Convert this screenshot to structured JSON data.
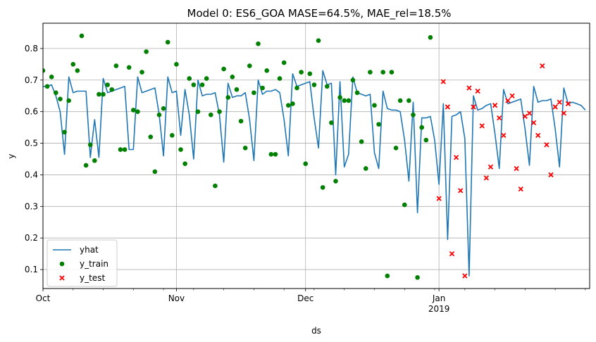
{
  "chart_data": {
    "type": "line",
    "title": "Model 0: ES6_GOA MASE=64.5%, MAE_rel=18.5%",
    "xlabel": "ds",
    "ylabel": "y",
    "x_range": [
      "2018-10-01",
      "2019-02-05"
    ],
    "ylim": [
      0.04,
      0.88
    ],
    "grid": true,
    "legend_position": "lower-left",
    "x_ticks": [
      {
        "date": "2018-10-01",
        "label": "Oct",
        "sublabel": ""
      },
      {
        "date": "2018-11-01",
        "label": "Nov",
        "sublabel": ""
      },
      {
        "date": "2018-12-01",
        "label": "Dec",
        "sublabel": ""
      },
      {
        "date": "2019-01-01",
        "label": "Jan",
        "sublabel": "2019"
      }
    ],
    "y_ticks": [
      0.1,
      0.2,
      0.3,
      0.4,
      0.5,
      0.6,
      0.7,
      0.8
    ],
    "y_tick_labels": [
      "0.1",
      "0.2",
      "0.3",
      "0.4",
      "0.5",
      "0.6",
      "0.7",
      "0.8"
    ],
    "colors": {
      "yhat": "#1f77b4",
      "y_train": "#008000",
      "y_test": "#ff0000",
      "grid": "#b0b0b0"
    },
    "legend": [
      "yhat",
      "y_train",
      "y_test"
    ],
    "series": [
      {
        "name": "yhat",
        "kind": "line",
        "values": [
          [
            "2018-09-30",
            0.73
          ],
          [
            "2018-10-01",
            0.68
          ],
          [
            "2018-10-02",
            0.68
          ],
          [
            "2018-10-03",
            0.685
          ],
          [
            "2018-10-04",
            0.65
          ],
          [
            "2018-10-05",
            0.6
          ],
          [
            "2018-10-06",
            0.465
          ],
          [
            "2018-10-07",
            0.71
          ],
          [
            "2018-10-08",
            0.66
          ],
          [
            "2018-10-09",
            0.665
          ],
          [
            "2018-10-10",
            0.665
          ],
          [
            "2018-10-11",
            0.665
          ],
          [
            "2018-10-12",
            0.455
          ],
          [
            "2018-10-13",
            0.575
          ],
          [
            "2018-10-14",
            0.455
          ],
          [
            "2018-10-15",
            0.705
          ],
          [
            "2018-10-16",
            0.66
          ],
          [
            "2018-10-17",
            0.665
          ],
          [
            "2018-10-18",
            0.67
          ],
          [
            "2018-10-19",
            0.675
          ],
          [
            "2018-10-20",
            0.68
          ],
          [
            "2018-10-21",
            0.48
          ],
          [
            "2018-10-22",
            0.48
          ],
          [
            "2018-10-23",
            0.71
          ],
          [
            "2018-10-24",
            0.66
          ],
          [
            "2018-10-25",
            0.665
          ],
          [
            "2018-10-26",
            0.67
          ],
          [
            "2018-10-27",
            0.675
          ],
          [
            "2018-10-28",
            0.59
          ],
          [
            "2018-10-29",
            0.46
          ],
          [
            "2018-10-30",
            0.71
          ],
          [
            "2018-10-31",
            0.66
          ],
          [
            "2018-11-01",
            0.665
          ],
          [
            "2018-11-02",
            0.525
          ],
          [
            "2018-11-03",
            0.67
          ],
          [
            "2018-11-04",
            0.59
          ],
          [
            "2018-11-05",
            0.45
          ],
          [
            "2018-11-06",
            0.7
          ],
          [
            "2018-11-07",
            0.65
          ],
          [
            "2018-11-08",
            0.655
          ],
          [
            "2018-11-09",
            0.655
          ],
          [
            "2018-11-10",
            0.66
          ],
          [
            "2018-11-11",
            0.59
          ],
          [
            "2018-11-12",
            0.44
          ],
          [
            "2018-11-13",
            0.69
          ],
          [
            "2018-11-14",
            0.645
          ],
          [
            "2018-11-15",
            0.65
          ],
          [
            "2018-11-16",
            0.65
          ],
          [
            "2018-11-17",
            0.66
          ],
          [
            "2018-11-18",
            0.575
          ],
          [
            "2018-11-19",
            0.445
          ],
          [
            "2018-11-20",
            0.7
          ],
          [
            "2018-11-21",
            0.655
          ],
          [
            "2018-11-22",
            0.665
          ],
          [
            "2018-11-23",
            0.665
          ],
          [
            "2018-11-24",
            0.67
          ],
          [
            "2018-11-25",
            0.66
          ],
          [
            "2018-11-26",
            0.575
          ],
          [
            "2018-11-27",
            0.46
          ],
          [
            "2018-11-28",
            0.72
          ],
          [
            "2018-11-29",
            0.68
          ],
          [
            "2018-11-30",
            0.685
          ],
          [
            "2018-12-01",
            0.69
          ],
          [
            "2018-12-02",
            0.695
          ],
          [
            "2018-12-03",
            0.58
          ],
          [
            "2018-12-04",
            0.485
          ],
          [
            "2018-12-05",
            0.73
          ],
          [
            "2018-12-06",
            0.685
          ],
          [
            "2018-12-07",
            0.69
          ],
          [
            "2018-12-08",
            0.4
          ],
          [
            "2018-12-09",
            0.695
          ],
          [
            "2018-12-10",
            0.425
          ],
          [
            "2018-12-11",
            0.465
          ],
          [
            "2018-12-12",
            0.71
          ],
          [
            "2018-12-13",
            0.66
          ],
          [
            "2018-12-14",
            0.655
          ],
          [
            "2018-12-15",
            0.65
          ],
          [
            "2018-12-16",
            0.655
          ],
          [
            "2018-12-17",
            0.47
          ],
          [
            "2018-12-18",
            0.42
          ],
          [
            "2018-12-19",
            0.665
          ],
          [
            "2018-12-20",
            0.61
          ],
          [
            "2018-12-21",
            0.605
          ],
          [
            "2018-12-22",
            0.605
          ],
          [
            "2018-12-23",
            0.6
          ],
          [
            "2018-12-24",
            0.51
          ],
          [
            "2018-12-25",
            0.38
          ],
          [
            "2018-12-26",
            0.63
          ],
          [
            "2018-12-27",
            0.28
          ],
          [
            "2018-12-28",
            0.58
          ],
          [
            "2018-12-29",
            0.58
          ],
          [
            "2018-12-30",
            0.585
          ],
          [
            "2018-12-31",
            0.51
          ],
          [
            "2019-01-01",
            0.37
          ],
          [
            "2019-01-02",
            0.625
          ],
          [
            "2019-01-03",
            0.195
          ],
          [
            "2019-01-04",
            0.585
          ],
          [
            "2019-01-05",
            0.59
          ],
          [
            "2019-01-06",
            0.6
          ],
          [
            "2019-01-07",
            0.515
          ],
          [
            "2019-01-08",
            0.08
          ],
          [
            "2019-01-09",
            0.65
          ],
          [
            "2019-01-10",
            0.605
          ],
          [
            "2019-01-11",
            0.61
          ],
          [
            "2019-01-12",
            0.62
          ],
          [
            "2019-01-13",
            0.625
          ],
          [
            "2019-01-14",
            0.53
          ],
          [
            "2019-01-15",
            0.42
          ],
          [
            "2019-01-16",
            0.67
          ],
          [
            "2019-01-17",
            0.625
          ],
          [
            "2019-01-18",
            0.63
          ],
          [
            "2019-01-19",
            0.635
          ],
          [
            "2019-01-20",
            0.64
          ],
          [
            "2019-01-21",
            0.545
          ],
          [
            "2019-01-22",
            0.43
          ],
          [
            "2019-01-23",
            0.68
          ],
          [
            "2019-01-24",
            0.63
          ],
          [
            "2019-01-25",
            0.635
          ],
          [
            "2019-01-26",
            0.635
          ],
          [
            "2019-01-27",
            0.64
          ],
          [
            "2019-01-28",
            0.545
          ],
          [
            "2019-01-29",
            0.425
          ],
          [
            "2019-01-30",
            0.675
          ],
          [
            "2019-01-31",
            0.625
          ],
          [
            "2019-02-01",
            0.63
          ],
          [
            "2019-02-02",
            0.625
          ],
          [
            "2019-02-03",
            0.62
          ],
          [
            "2019-02-04",
            0.605
          ]
        ]
      },
      {
        "name": "y_train",
        "kind": "scatter",
        "values": [
          [
            "2018-09-30",
            0.73
          ],
          [
            "2018-10-01",
            0.73
          ],
          [
            "2018-10-02",
            0.68
          ],
          [
            "2018-10-03",
            0.71
          ],
          [
            "2018-10-04",
            0.66
          ],
          [
            "2018-10-05",
            0.64
          ],
          [
            "2018-10-06",
            0.535
          ],
          [
            "2018-10-07",
            0.635
          ],
          [
            "2018-10-08",
            0.75
          ],
          [
            "2018-10-09",
            0.73
          ],
          [
            "2018-10-10",
            0.84
          ],
          [
            "2018-10-11",
            0.43
          ],
          [
            "2018-10-12",
            0.495
          ],
          [
            "2018-10-13",
            0.445
          ],
          [
            "2018-10-14",
            0.655
          ],
          [
            "2018-10-15",
            0.655
          ],
          [
            "2018-10-16",
            0.685
          ],
          [
            "2018-10-17",
            0.67
          ],
          [
            "2018-10-18",
            0.745
          ],
          [
            "2018-10-19",
            0.48
          ],
          [
            "2018-10-20",
            0.48
          ],
          [
            "2018-10-21",
            0.74
          ],
          [
            "2018-10-22",
            0.605
          ],
          [
            "2018-10-23",
            0.6
          ],
          [
            "2018-10-24",
            0.725
          ],
          [
            "2018-10-25",
            0.79
          ],
          [
            "2018-10-26",
            0.52
          ],
          [
            "2018-10-27",
            0.41
          ],
          [
            "2018-10-28",
            0.59
          ],
          [
            "2018-10-29",
            0.61
          ],
          [
            "2018-10-30",
            0.82
          ],
          [
            "2018-10-31",
            0.525
          ],
          [
            "2018-11-01",
            0.75
          ],
          [
            "2018-11-02",
            0.48
          ],
          [
            "2018-11-03",
            0.435
          ],
          [
            "2018-11-04",
            0.705
          ],
          [
            "2018-11-05",
            0.685
          ],
          [
            "2018-11-06",
            0.6
          ],
          [
            "2018-11-07",
            0.685
          ],
          [
            "2018-11-08",
            0.705
          ],
          [
            "2018-11-09",
            0.59
          ],
          [
            "2018-11-10",
            0.365
          ],
          [
            "2018-11-11",
            0.6
          ],
          [
            "2018-11-12",
            0.735
          ],
          [
            "2018-11-13",
            0.645
          ],
          [
            "2018-11-14",
            0.71
          ],
          [
            "2018-11-15",
            0.67
          ],
          [
            "2018-11-16",
            0.57
          ],
          [
            "2018-11-17",
            0.485
          ],
          [
            "2018-11-18",
            0.745
          ],
          [
            "2018-11-19",
            0.66
          ],
          [
            "2018-11-20",
            0.815
          ],
          [
            "2018-11-21",
            0.675
          ],
          [
            "2018-11-22",
            0.73
          ],
          [
            "2018-11-23",
            0.465
          ],
          [
            "2018-11-24",
            0.465
          ],
          [
            "2018-11-25",
            0.705
          ],
          [
            "2018-11-26",
            0.755
          ],
          [
            "2018-11-27",
            0.62
          ],
          [
            "2018-11-28",
            0.625
          ],
          [
            "2018-11-29",
            0.675
          ],
          [
            "2018-11-30",
            0.725
          ],
          [
            "2018-12-01",
            0.435
          ],
          [
            "2018-12-02",
            0.72
          ],
          [
            "2018-12-03",
            0.685
          ],
          [
            "2018-12-04",
            0.825
          ],
          [
            "2018-12-05",
            0.36
          ],
          [
            "2018-12-06",
            0.68
          ],
          [
            "2018-12-07",
            0.565
          ],
          [
            "2018-12-08",
            0.38
          ],
          [
            "2018-12-09",
            0.645
          ],
          [
            "2018-12-10",
            0.635
          ],
          [
            "2018-12-11",
            0.635
          ],
          [
            "2018-12-12",
            0.7
          ],
          [
            "2018-12-13",
            0.66
          ],
          [
            "2018-12-14",
            0.505
          ],
          [
            "2018-12-15",
            0.42
          ],
          [
            "2018-12-16",
            0.725
          ],
          [
            "2018-12-17",
            0.62
          ],
          [
            "2018-12-18",
            0.56
          ],
          [
            "2018-12-19",
            0.725
          ],
          [
            "2018-12-20",
            0.08
          ],
          [
            "2018-12-21",
            0.725
          ],
          [
            "2018-12-22",
            0.485
          ],
          [
            "2018-12-23",
            0.635
          ],
          [
            "2018-12-24",
            0.305
          ],
          [
            "2018-12-25",
            0.635
          ],
          [
            "2018-12-26",
            0.59
          ],
          [
            "2018-12-27",
            0.075
          ],
          [
            "2018-12-28",
            0.55
          ],
          [
            "2018-12-29",
            0.51
          ],
          [
            "2018-12-30",
            0.835
          ]
        ]
      },
      {
        "name": "y_test",
        "kind": "scatter",
        "values": [
          [
            "2019-01-01",
            0.325
          ],
          [
            "2019-01-02",
            0.695
          ],
          [
            "2019-01-03",
            0.615
          ],
          [
            "2019-01-04",
            0.15
          ],
          [
            "2019-01-05",
            0.455
          ],
          [
            "2019-01-06",
            0.35
          ],
          [
            "2019-01-07",
            0.08
          ],
          [
            "2019-01-08",
            0.675
          ],
          [
            "2019-01-09",
            0.615
          ],
          [
            "2019-01-10",
            0.665
          ],
          [
            "2019-01-11",
            0.555
          ],
          [
            "2019-01-12",
            0.39
          ],
          [
            "2019-01-13",
            0.425
          ],
          [
            "2019-01-14",
            0.62
          ],
          [
            "2019-01-15",
            0.58
          ],
          [
            "2019-01-16",
            0.525
          ],
          [
            "2019-01-17",
            0.635
          ],
          [
            "2019-01-18",
            0.65
          ],
          [
            "2019-01-19",
            0.42
          ],
          [
            "2019-01-20",
            0.355
          ],
          [
            "2019-01-21",
            0.585
          ],
          [
            "2019-01-22",
            0.595
          ],
          [
            "2019-01-23",
            0.565
          ],
          [
            "2019-01-24",
            0.525
          ],
          [
            "2019-01-25",
            0.745
          ],
          [
            "2019-01-26",
            0.495
          ],
          [
            "2019-01-27",
            0.4
          ],
          [
            "2019-01-28",
            0.615
          ],
          [
            "2019-01-29",
            0.63
          ],
          [
            "2019-01-30",
            0.595
          ],
          [
            "2019-01-31",
            0.625
          ]
        ]
      }
    ]
  }
}
